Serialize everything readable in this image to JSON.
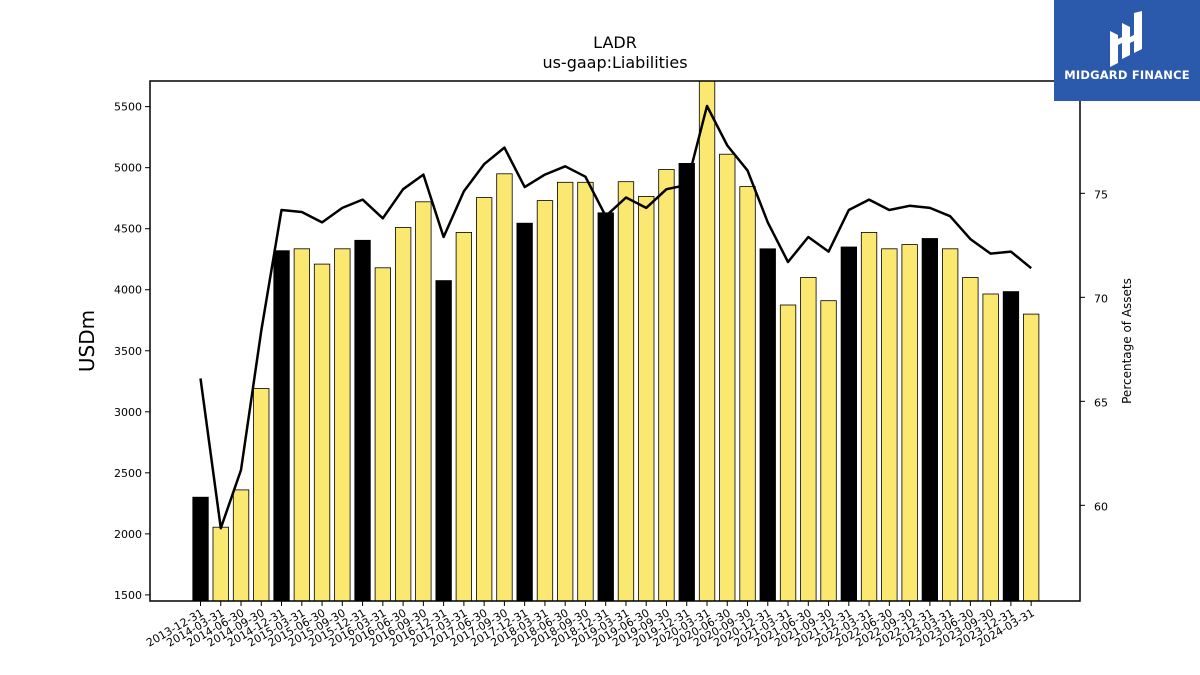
{
  "brand": {
    "name": "MIDGARD FINANCE"
  },
  "chart_data": {
    "type": "bar",
    "title": "LADR",
    "subtitle": "us-gaap:Liabilities",
    "ylabel": "USDm",
    "y2label": "Percentage of Assets",
    "ylim": [
      1450,
      5710
    ],
    "y2lim": [
      55.4,
      80.4
    ],
    "yticks": [
      1500,
      2000,
      2500,
      3000,
      3500,
      4000,
      4500,
      5000,
      5500
    ],
    "y2ticks": [
      60,
      65,
      70,
      75
    ],
    "colors": {
      "q4_bar": "#000000",
      "bar": "#fbe870",
      "bar_edge": "#000000",
      "line": "#000000"
    },
    "highlight_rule": "Q4 (December) bars shown in black",
    "categories": [
      "2013-12-31",
      "2014-03-31",
      "2014-06-30",
      "2014-09-30",
      "2014-12-31",
      "2015-03-31",
      "2015-06-30",
      "2015-09-30",
      "2015-12-31",
      "2016-03-31",
      "2016-06-30",
      "2016-09-30",
      "2016-12-31",
      "2017-03-31",
      "2017-06-30",
      "2017-09-30",
      "2017-12-31",
      "2018-03-31",
      "2018-06-30",
      "2018-09-30",
      "2018-12-31",
      "2019-03-31",
      "2019-06-30",
      "2019-09-30",
      "2019-12-31",
      "2020-03-31",
      "2020-06-30",
      "2020-09-30",
      "2020-12-31",
      "2021-03-31",
      "2021-06-30",
      "2021-09-30",
      "2021-12-31",
      "2022-03-31",
      "2022-06-30",
      "2022-09-30",
      "2022-12-31",
      "2023-03-31",
      "2023-06-30",
      "2023-09-30",
      "2023-12-31",
      "2024-03-31"
    ],
    "series": [
      {
        "type": "bar",
        "axis": "left",
        "values": [
          2300,
          2055,
          2360,
          3190,
          4320,
          4335,
          4210,
          4335,
          4405,
          4180,
          4510,
          4720,
          4075,
          4470,
          4755,
          4950,
          4545,
          4730,
          4880,
          4880,
          4630,
          4885,
          4765,
          4985,
          5035,
          5750,
          5110,
          4845,
          4335,
          3875,
          4100,
          3910,
          4350,
          4470,
          4335,
          4370,
          4420,
          4335,
          4100,
          3965,
          3985,
          3800
        ]
      },
      {
        "type": "line",
        "axis": "right",
        "values": [
          66.1,
          58.9,
          61.7,
          68.4,
          74.2,
          74.1,
          73.6,
          74.3,
          74.7,
          73.8,
          75.2,
          75.9,
          72.9,
          75.1,
          76.4,
          77.2,
          75.3,
          75.9,
          76.3,
          75.8,
          73.9,
          74.8,
          74.3,
          75.2,
          75.4,
          79.2,
          77.3,
          76.1,
          73.6,
          71.7,
          72.9,
          72.2,
          74.2,
          74.7,
          74.2,
          74.4,
          74.3,
          73.9,
          72.8,
          72.1,
          72.2,
          71.4
        ]
      }
    ]
  }
}
